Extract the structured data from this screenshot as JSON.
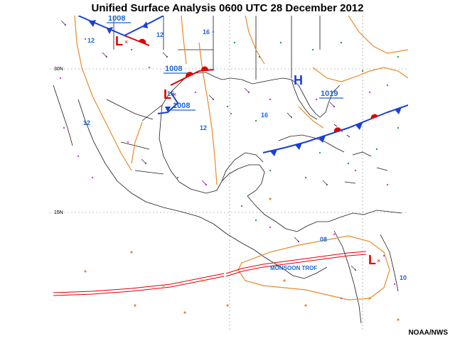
{
  "title": "Unified Surface Analysis 0600 UTC 28 December 2012",
  "credit": "NOAA/NWS",
  "lat_labels": {
    "n30": "30N",
    "n15": "15N"
  },
  "highs": [
    {
      "label": "H",
      "pressure": "1019"
    }
  ],
  "lows": [
    {
      "label": "L",
      "pressure": "1008"
    },
    {
      "label": "L",
      "pressure": "1008"
    },
    {
      "label": "L",
      "pressure": "1008"
    },
    {
      "label": "L",
      "pressure": ""
    }
  ],
  "isobar_values": [
    "12",
    "16",
    "12",
    "16",
    "12",
    "16",
    "12",
    "08",
    "10"
  ],
  "features": {
    "monsoon_trough": "MONSOON TROF"
  },
  "colors": {
    "isobar": "#e88a2a",
    "cold_front": "#1a3fd6",
    "warm_front": "#e00000",
    "pressure_label": "#1a66d6",
    "land": "#1a1a1a",
    "grid": "#888888"
  }
}
